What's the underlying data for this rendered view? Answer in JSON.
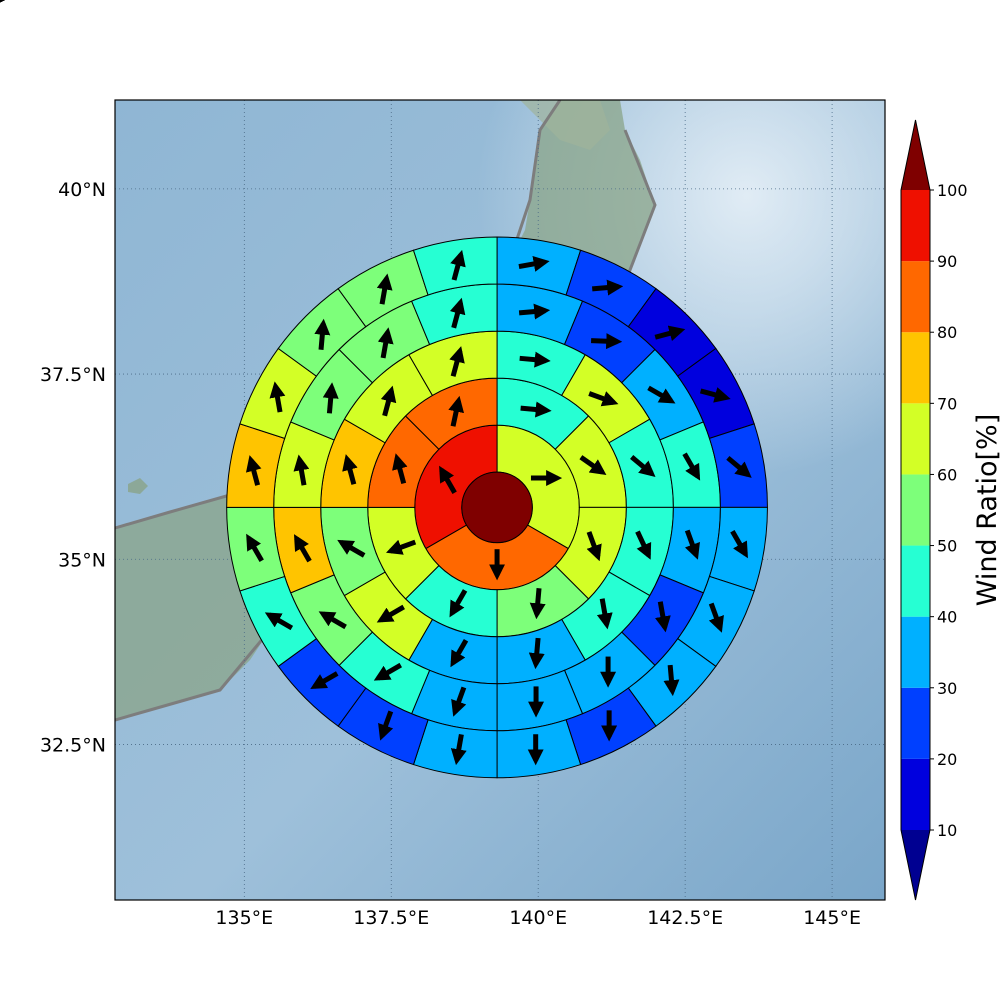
{
  "chart_data": {
    "type": "heatmap",
    "title": "",
    "description_kind": "polar wind-rose map",
    "projection": "lon-lat map with shaded relief background",
    "xlim": [
      132.8,
      145.9
    ],
    "ylim": [
      30.4,
      41.2
    ],
    "center": {
      "lon": 139.3,
      "lat": 35.7
    },
    "ring_radius_deg": [
      0.6,
      1.4,
      2.2,
      3.0,
      3.8,
      4.6
    ],
    "x_ticks": [
      135,
      137.5,
      140,
      142.5,
      145
    ],
    "x_tick_labels": [
      "135°E",
      "137.5°E",
      "140°E",
      "142.5°E",
      "145°E"
    ],
    "y_ticks": [
      32.5,
      35,
      37.5,
      40
    ],
    "y_tick_labels": [
      "32.5°N",
      "35°N",
      "37.5°N",
      "40°N"
    ],
    "grid": true,
    "center_value": 100,
    "sector_unit": "degrees clockwise from north, sector start",
    "rings": [
      {
        "sectors": 3,
        "values": [
          65,
          85,
          95
        ],
        "arrow_dir_deg": [
          90,
          180,
          330
        ]
      },
      {
        "sectors": 8,
        "values": [
          45,
          65,
          65,
          55,
          45,
          65,
          85,
          85
        ],
        "arrow_dir_deg": [
          95,
          125,
          160,
          185,
          210,
          250,
          345,
          12
        ]
      },
      {
        "sectors": 12,
        "values": [
          45,
          65,
          45,
          45,
          45,
          35,
          35,
          65,
          55,
          75,
          65,
          65
        ],
        "arrow_dir_deg": [
          95,
          110,
          130,
          155,
          170,
          185,
          210,
          240,
          300,
          345,
          15,
          15
        ]
      },
      {
        "sectors": 16,
        "values": [
          35,
          25,
          35,
          45,
          35,
          25,
          35,
          35,
          35,
          45,
          55,
          75,
          65,
          55,
          55,
          45
        ],
        "arrow_dir_deg": [
          85,
          92,
          120,
          150,
          160,
          170,
          180,
          180,
          200,
          240,
          300,
          330,
          350,
          5,
          10,
          15
        ]
      },
      {
        "sectors": 20,
        "values": [
          35,
          25,
          15,
          15,
          25,
          35,
          35,
          35,
          25,
          35,
          35,
          25,
          25,
          45,
          55,
          75,
          65,
          55,
          55,
          45
        ],
        "arrow_dir_deg": [
          80,
          85,
          75,
          105,
          130,
          150,
          160,
          175,
          180,
          180,
          190,
          200,
          240,
          300,
          330,
          345,
          350,
          5,
          10,
          15
        ]
      },
      {
        "sectors": 24,
        "values": [
          35,
          25,
          15,
          15,
          15,
          25,
          25,
          25,
          35,
          25,
          25,
          25,
          25,
          25,
          25,
          25,
          25,
          45,
          55,
          55,
          55,
          55,
          45,
          35
        ],
        "arrow_dir_deg": [
          65,
          100,
          80,
          80,
          120,
          150,
          165,
          175,
          175,
          180,
          180,
          180,
          170,
          195,
          210,
          240,
          300,
          330,
          345,
          350,
          355,
          5,
          10,
          15
        ]
      }
    ],
    "colorbar": {
      "label": "Wind Ratio[%]",
      "ticks": [
        10,
        20,
        30,
        40,
        50,
        60,
        70,
        80,
        90,
        100
      ],
      "tick_labels": [
        "10",
        "20",
        "30",
        "40",
        "50",
        "60",
        "70",
        "80",
        "90",
        "100"
      ],
      "extend": "both",
      "colors": [
        "#0000de",
        "#0040ff",
        "#00b0ff",
        "#26ffd3",
        "#7dff7a",
        "#d3ff26",
        "#ffc400",
        "#ff6800",
        "#ef1000"
      ],
      "under_color": "#000091",
      "over_color": "#7f0000"
    }
  }
}
